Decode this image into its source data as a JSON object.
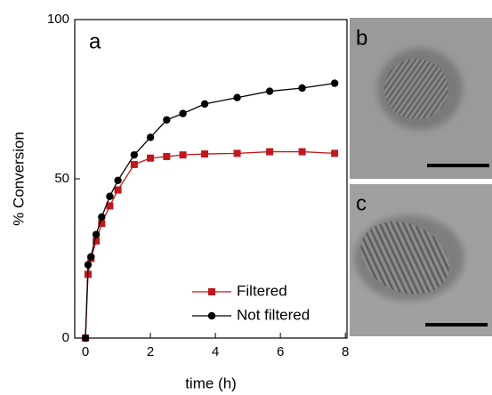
{
  "chart_data": {
    "type": "line",
    "xlabel": "time (h)",
    "ylabel": "% Conversion",
    "annotations": [
      "a",
      "b",
      "c"
    ],
    "x": [
      0,
      0.08,
      0.17,
      0.33,
      0.5,
      0.75,
      1.0,
      1.5,
      2,
      2.5,
      3,
      3.67,
      4.67,
      5.67,
      6.67,
      7.67
    ],
    "series": [
      {
        "name": "Filtered",
        "color": "#c0181e",
        "marker": "square",
        "values": [
          0,
          20,
          25,
          30.5,
          36,
          41.5,
          46.5,
          54.5,
          56.5,
          57,
          57.5,
          57.8,
          58,
          58.5,
          58.5,
          58
        ]
      },
      {
        "name": "Not filtered",
        "color": "#000000",
        "marker": "circle",
        "values": [
          0,
          23,
          25.5,
          32.5,
          38,
          44.5,
          49.5,
          57.5,
          63,
          68.5,
          70.5,
          73.5,
          75.5,
          77.5,
          78.5,
          80
        ]
      }
    ],
    "xlim": [
      -0.33,
      8.05
    ],
    "xticks": [
      0,
      2,
      4,
      6,
      8
    ],
    "ylim": [
      0,
      100
    ],
    "yticks": [
      0,
      50,
      100
    ],
    "legend": "lower right"
  }
}
